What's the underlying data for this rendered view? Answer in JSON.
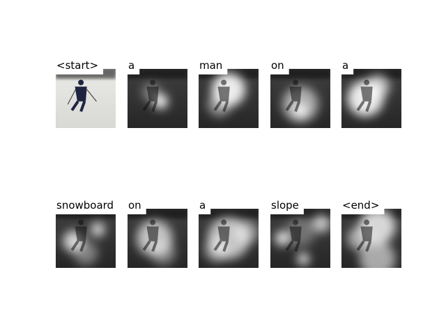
{
  "words": [
    "<start>",
    "a",
    "man",
    "on",
    "a",
    "snowboard",
    "on",
    "a",
    "slope",
    "<end>"
  ]
}
